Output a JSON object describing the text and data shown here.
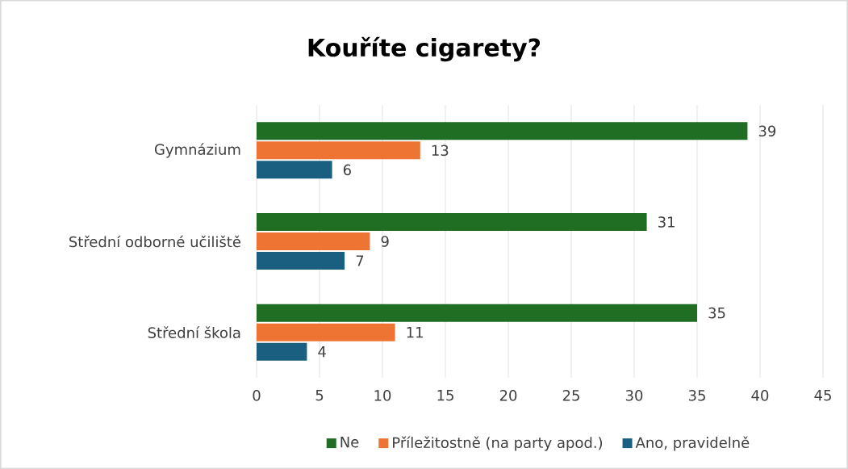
{
  "chart_data": {
    "type": "bar",
    "orientation": "horizontal",
    "title": "Kouříte cigarety?",
    "categories": [
      "Gymnázium",
      "Střední odborné učiliště",
      "Střední škola"
    ],
    "series": [
      {
        "name": "Ne",
        "color": "#1f6e24",
        "values": [
          39,
          31,
          35
        ]
      },
      {
        "name": "Příležitostně (na party apod.)",
        "color": "#ed7433",
        "values": [
          13,
          9,
          11
        ]
      },
      {
        "name": "Ano, pravidelně",
        "color": "#1a5f80",
        "values": [
          6,
          7,
          4
        ]
      }
    ],
    "xlim": [
      0,
      45
    ],
    "xticks": [
      0,
      5,
      10,
      15,
      20,
      25,
      30,
      35,
      40,
      45
    ],
    "grid": "x",
    "legend": "bottom",
    "data_labels": true
  }
}
